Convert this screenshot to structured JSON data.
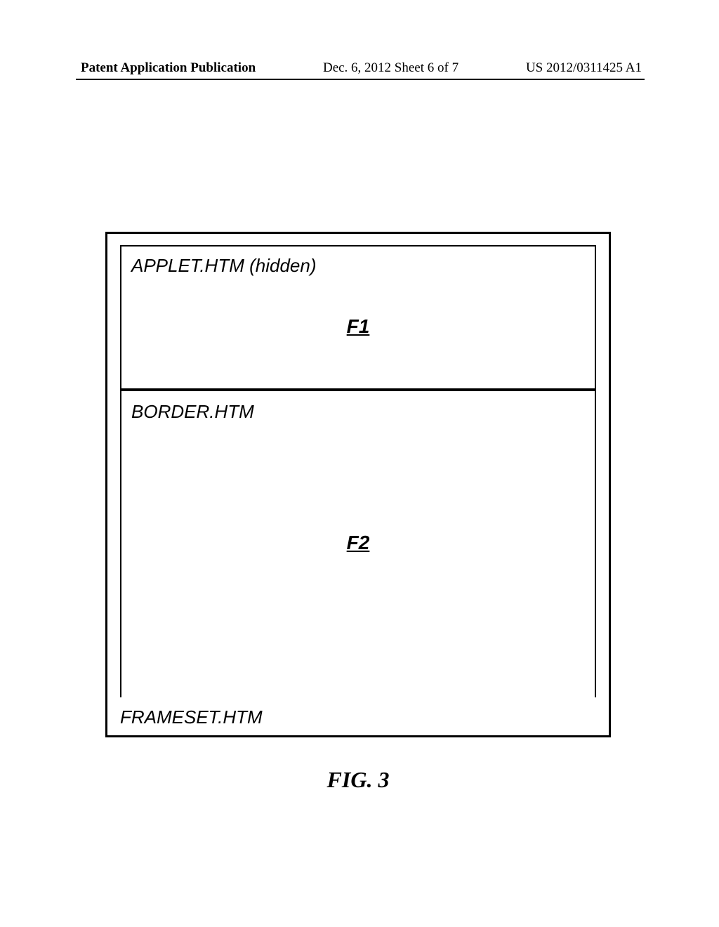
{
  "header": {
    "left": "Patent Application Publication",
    "center": "Dec. 6, 2012  Sheet 6 of 7",
    "right": "US 2012/0311425 A1"
  },
  "figure": {
    "frame1": {
      "label": "APPLET.HTM (hidden)",
      "id": "F1"
    },
    "frame2": {
      "label": "BORDER.HTM",
      "id": "F2"
    },
    "frameset_label": "FRAMESET.HTM",
    "caption": "FIG. 3"
  },
  "styling": {
    "page_bg": "#ffffff",
    "border_color": "#000000",
    "text_color": "#000000",
    "outer_border_width": 3,
    "inner_border_width": 2,
    "label_fontsize": 26,
    "id_fontsize": 28,
    "caption_fontsize": 32,
    "header_fontsize": 19
  }
}
